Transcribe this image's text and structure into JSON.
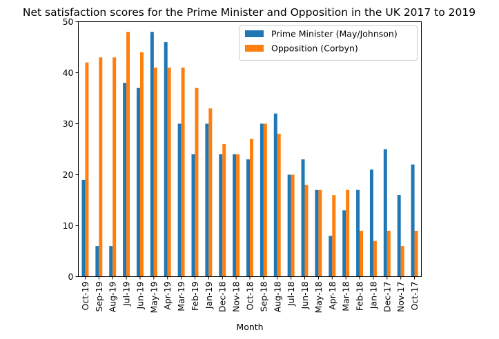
{
  "chart_data": {
    "type": "bar",
    "title": "Net satisfaction scores for the Prime Minister and Opposition in the UK 2017 to 2019",
    "xlabel": "Month",
    "ylabel": "",
    "ylim": [
      0,
      50
    ],
    "yticks": [
      0,
      10,
      20,
      30,
      40,
      50
    ],
    "categories": [
      "Oct-19",
      "Sep-19",
      "Aug-19",
      "Jul-19",
      "Jun-19",
      "May-19",
      "Apr-19",
      "Mar-19",
      "Feb-19",
      "Jan-19",
      "Dec-18",
      "Nov-18",
      "Oct-18",
      "Sep-18",
      "Aug-18",
      "Jul-18",
      "Jun-18",
      "May-18",
      "Apr-18",
      "Mar-18",
      "Feb-18",
      "Jan-18",
      "Dec-17",
      "Nov-17",
      "Oct-17"
    ],
    "series": [
      {
        "name": "Prime Minister (May/Johnson)",
        "color": "#1f77b4",
        "values": [
          19,
          6,
          6,
          38,
          37,
          48,
          46,
          30,
          24,
          30,
          24,
          24,
          23,
          30,
          32,
          20,
          23,
          17,
          8,
          13,
          17,
          21,
          25,
          16,
          22
        ]
      },
      {
        "name": "Opposition (Corbyn)",
        "color": "#ff7f0e",
        "values": [
          42,
          43,
          43,
          48,
          44,
          41,
          41,
          41,
          37,
          33,
          26,
          24,
          27,
          30,
          28,
          20,
          18,
          17,
          16,
          17,
          9,
          7,
          9,
          6,
          9
        ]
      }
    ],
    "legend_position": "top-right",
    "grid": false
  }
}
